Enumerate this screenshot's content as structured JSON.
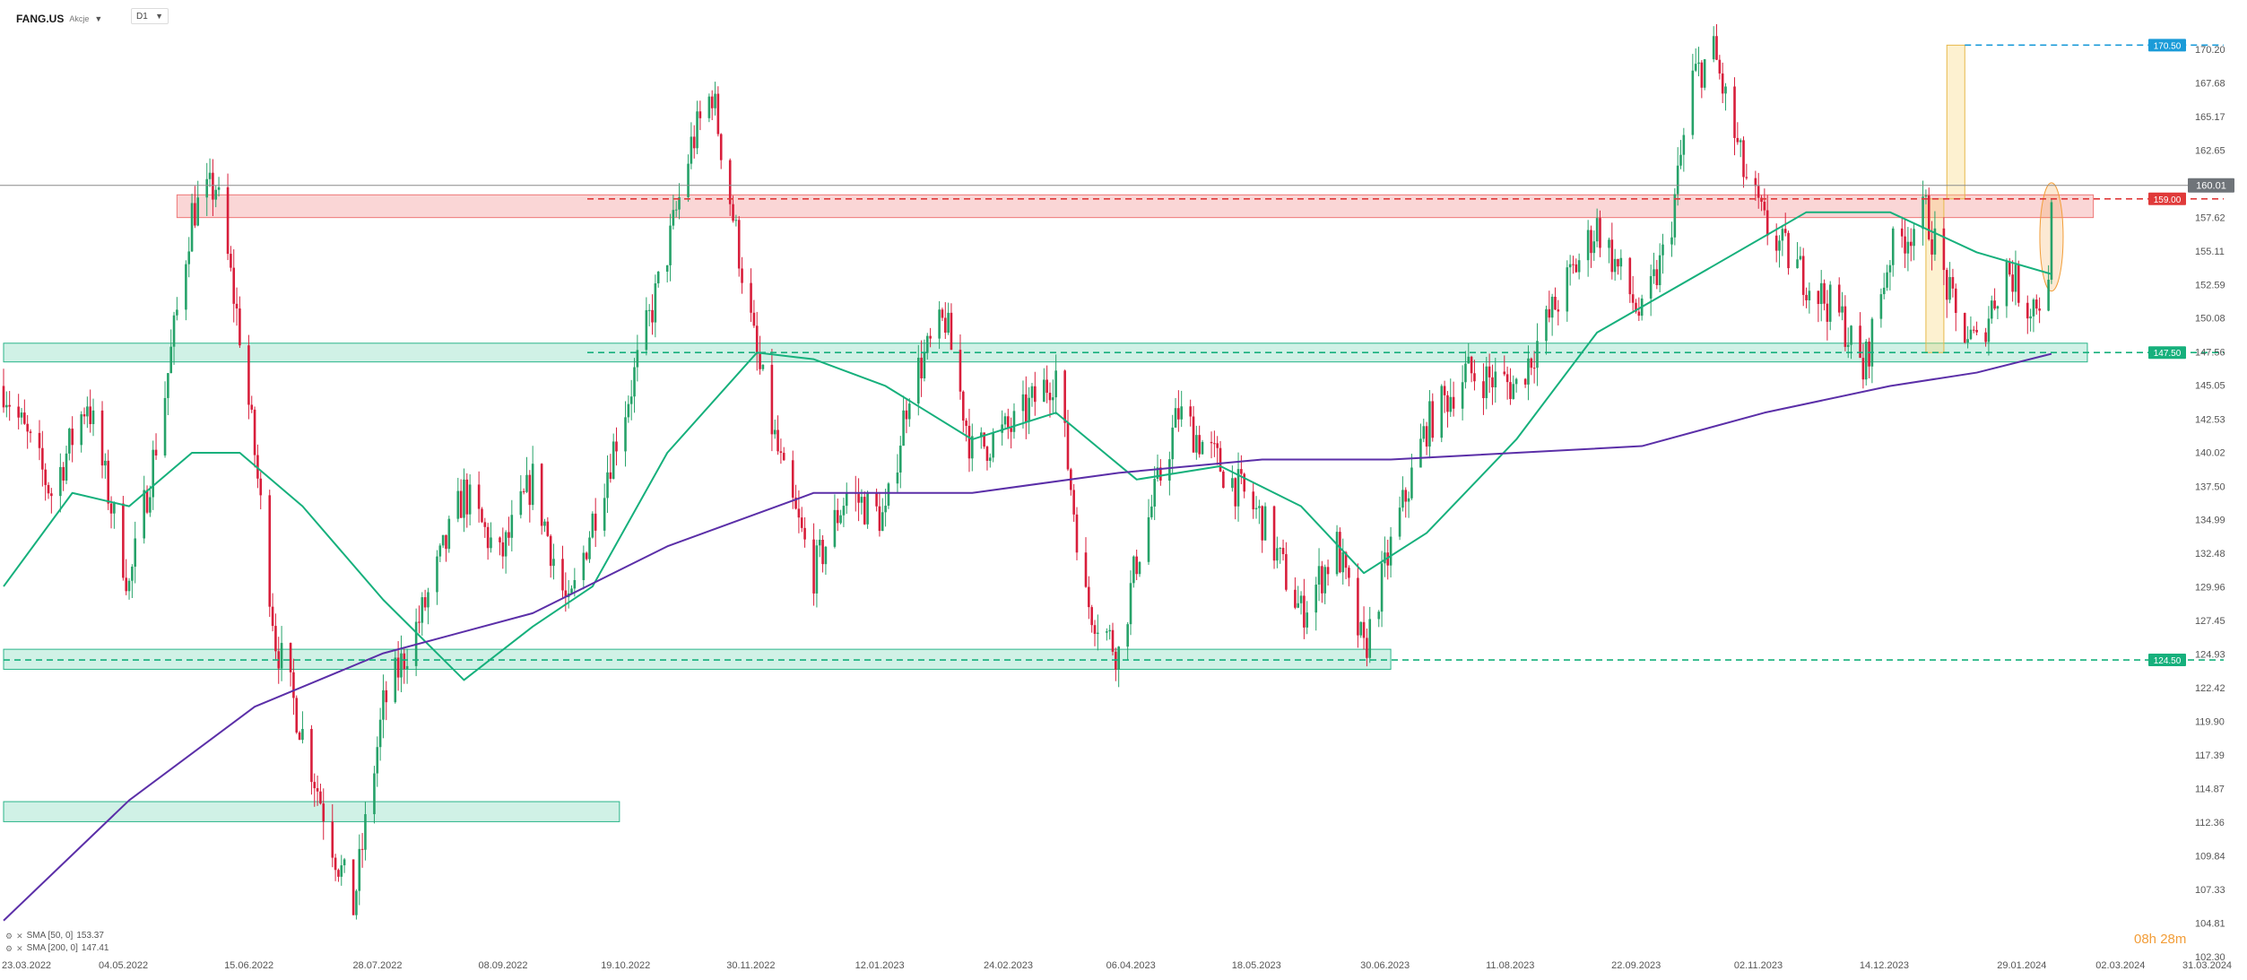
{
  "header": {
    "symbol": "FANG.US",
    "instrument_type": "Akcje",
    "timeframe": "D1"
  },
  "legend": [
    {
      "label": "SMA [50, 0]",
      "value": "153.37"
    },
    {
      "label": "SMA [200, 0]",
      "value": "147.41"
    }
  ],
  "countdown": "08h 28m",
  "colors": {
    "bull": "#26a269",
    "bear": "#d81e3b",
    "sma50": "#16b07c",
    "sma200": "#5b2fa8",
    "resistance": "#e03a3a",
    "support": "#16b07c",
    "target": "#1a9bd8",
    "highlight": "#f29d38"
  },
  "chart_data": {
    "type": "candlestick",
    "title": "",
    "xlabel": "",
    "ylabel": "",
    "ylim": [
      102.5,
      172.0
    ],
    "y_ticks": [
      "170.20",
      "167.68",
      "165.17",
      "162.65",
      "157.62",
      "155.11",
      "152.59",
      "150.08",
      "147.56",
      "145.05",
      "142.53",
      "140.02",
      "137.50",
      "134.99",
      "132.48",
      "129.96",
      "127.45",
      "124.93",
      "122.42",
      "119.90",
      "117.39",
      "114.87",
      "112.36",
      "109.84",
      "107.33",
      "104.81",
      "102.30"
    ],
    "x_ticks": [
      "23.03.2022",
      "04.05.2022",
      "15.06.2022",
      "28.07.2022",
      "08.09.2022",
      "19.10.2022",
      "30.11.2022",
      "12.01.2023",
      "24.02.2023",
      "06.04.2023",
      "18.05.2023",
      "30.06.2023",
      "11.08.2023",
      "22.09.2023",
      "02.11.2023",
      "14.12.2023",
      "29.01.2024",
      "02.03.2024",
      "31.03.2024"
    ],
    "current_price": "160.01",
    "price_path": [
      [
        "2022-03-23",
        145.0
      ],
      [
        "2022-04-08",
        137.0
      ],
      [
        "2022-04-20",
        144.0
      ],
      [
        "2022-05-04",
        130.0
      ],
      [
        "2022-05-15",
        143.0
      ],
      [
        "2022-05-25",
        158.0
      ],
      [
        "2022-06-02",
        160.0
      ],
      [
        "2022-06-10",
        149.0
      ],
      [
        "2022-06-15",
        140.0
      ],
      [
        "2022-06-22",
        126.0
      ],
      [
        "2022-07-01",
        119.0
      ],
      [
        "2022-07-12",
        110.0
      ],
      [
        "2022-07-18",
        106.0
      ],
      [
        "2022-07-28",
        121.0
      ],
      [
        "2022-08-10",
        128.0
      ],
      [
        "2022-08-24",
        137.0
      ],
      [
        "2022-09-05",
        132.0
      ],
      [
        "2022-09-16",
        138.0
      ],
      [
        "2022-09-28",
        128.0
      ],
      [
        "2022-10-06",
        135.0
      ],
      [
        "2022-10-19",
        145.0
      ],
      [
        "2022-10-31",
        155.0
      ],
      [
        "2022-11-08",
        163.0
      ],
      [
        "2022-11-15",
        167.0
      ],
      [
        "2022-11-24",
        155.0
      ],
      [
        "2022-11-30",
        147.0
      ],
      [
        "2022-12-09",
        138.0
      ],
      [
        "2022-12-19",
        131.0
      ],
      [
        "2022-12-30",
        137.0
      ],
      [
        "2023-01-12",
        135.0
      ],
      [
        "2023-01-20",
        145.0
      ],
      [
        "2023-02-01",
        150.0
      ],
      [
        "2023-02-10",
        140.0
      ],
      [
        "2023-02-24",
        142.0
      ],
      [
        "2023-03-10",
        146.0
      ],
      [
        "2023-03-20",
        129.0
      ],
      [
        "2023-03-31",
        125.0
      ],
      [
        "2023-04-06",
        132.0
      ],
      [
        "2023-04-20",
        143.0
      ],
      [
        "2023-05-04",
        139.0
      ],
      [
        "2023-05-18",
        135.0
      ],
      [
        "2023-05-31",
        128.0
      ],
      [
        "2023-06-12",
        133.0
      ],
      [
        "2023-06-21",
        125.0
      ],
      [
        "2023-06-30",
        133.0
      ],
      [
        "2023-07-12",
        142.0
      ],
      [
        "2023-07-25",
        146.0
      ],
      [
        "2023-08-11",
        145.0
      ],
      [
        "2023-08-24",
        151.0
      ],
      [
        "2023-09-07",
        157.0
      ],
      [
        "2023-09-22",
        150.0
      ],
      [
        "2023-10-01",
        156.0
      ],
      [
        "2023-10-09",
        168.0
      ],
      [
        "2023-10-16",
        170.0
      ],
      [
        "2023-10-26",
        161.0
      ],
      [
        "2023-11-02",
        157.0
      ],
      [
        "2023-11-16",
        153.0
      ],
      [
        "2023-11-28",
        150.0
      ],
      [
        "2023-12-05",
        146.0
      ],
      [
        "2023-12-14",
        155.0
      ],
      [
        "2023-12-26",
        158.0
      ],
      [
        "2024-01-05",
        150.0
      ],
      [
        "2024-01-12",
        148.0
      ],
      [
        "2024-01-22",
        154.0
      ],
      [
        "2024-01-29",
        151.0
      ],
      [
        "2024-02-05",
        152.0
      ],
      [
        "2024-02-06",
        160.0
      ]
    ],
    "sma50_path": [
      [
        "2022-03-23",
        130.0
      ],
      [
        "2022-04-15",
        137.0
      ],
      [
        "2022-05-04",
        136.0
      ],
      [
        "2022-05-25",
        140.0
      ],
      [
        "2022-06-10",
        140.0
      ],
      [
        "2022-07-01",
        136.0
      ],
      [
        "2022-07-28",
        129.0
      ],
      [
        "2022-08-24",
        123.0
      ],
      [
        "2022-09-16",
        127.0
      ],
      [
        "2022-10-06",
        130.0
      ],
      [
        "2022-10-31",
        140.0
      ],
      [
        "2022-11-30",
        147.5
      ],
      [
        "2022-12-19",
        147.0
      ],
      [
        "2023-01-12",
        145.0
      ],
      [
        "2023-02-10",
        141.0
      ],
      [
        "2023-03-10",
        143.0
      ],
      [
        "2023-04-06",
        138.0
      ],
      [
        "2023-05-04",
        139.0
      ],
      [
        "2023-05-31",
        136.0
      ],
      [
        "2023-06-21",
        131.0
      ],
      [
        "2023-07-12",
        134.0
      ],
      [
        "2023-08-11",
        141.0
      ],
      [
        "2023-09-07",
        149.0
      ],
      [
        "2023-10-16",
        154.0
      ],
      [
        "2023-11-16",
        158.0
      ],
      [
        "2023-12-14",
        158.0
      ],
      [
        "2024-01-12",
        155.0
      ],
      [
        "2024-02-06",
        153.37
      ]
    ],
    "sma200_path": [
      [
        "2022-03-23",
        105.0
      ],
      [
        "2022-05-04",
        114.0
      ],
      [
        "2022-06-15",
        121.0
      ],
      [
        "2022-07-28",
        125.0
      ],
      [
        "2022-09-16",
        128.0
      ],
      [
        "2022-10-31",
        133.0
      ],
      [
        "2022-12-19",
        137.0
      ],
      [
        "2023-02-10",
        137.0
      ],
      [
        "2023-03-31",
        138.5
      ],
      [
        "2023-05-18",
        139.5
      ],
      [
        "2023-06-30",
        139.5
      ],
      [
        "2023-08-11",
        140.0
      ],
      [
        "2023-09-22",
        140.5
      ],
      [
        "2023-11-02",
        143.0
      ],
      [
        "2023-12-14",
        145.0
      ],
      [
        "2024-01-12",
        146.0
      ],
      [
        "2024-02-06",
        147.41
      ]
    ],
    "levels": [
      {
        "value": 159.0,
        "label": "159.00",
        "kind": "resistance"
      },
      {
        "value": 147.5,
        "label": "147.50",
        "kind": "support"
      },
      {
        "value": 124.5,
        "label": "124.50",
        "kind": "support"
      },
      {
        "value": 170.5,
        "label": "170.50",
        "kind": "target"
      }
    ],
    "zones": [
      {
        "from": "2022-05-20",
        "to": "2024-02-20",
        "low": 157.6,
        "high": 159.3,
        "kind": "resistance"
      },
      {
        "from": "2022-03-23",
        "to": "2024-02-18",
        "low": 146.8,
        "high": 148.2,
        "kind": "support"
      },
      {
        "from": "2022-03-23",
        "to": "2023-06-30",
        "low": 123.8,
        "high": 125.3,
        "kind": "support"
      },
      {
        "from": "2022-03-23",
        "to": "2022-10-15",
        "low": 112.4,
        "high": 113.9,
        "kind": "support"
      }
    ],
    "measure_boxes": [
      {
        "from": "2023-12-26",
        "to": "2024-01-01",
        "low": 147.5,
        "high": 159.0
      },
      {
        "from": "2024-01-02",
        "to": "2024-01-08",
        "low": 159.0,
        "high": 170.5
      }
    ],
    "highlight": {
      "date": "2024-02-06",
      "low": 152.5,
      "high": 159.8
    },
    "grid": false,
    "legend_position": "bottom-left"
  }
}
